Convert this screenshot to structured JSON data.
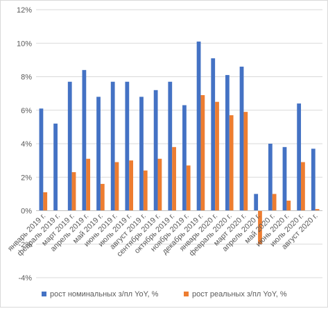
{
  "chart_data": {
    "type": "bar",
    "categories": [
      "январь 2019 г.",
      "февраль 2019 г.",
      "март 2019 г.",
      "апрель 2019 г.",
      "май 2019 г.",
      "июнь 2019 г.",
      "июль 2019 г.",
      "август 2019 г.",
      "сентябрь 2019 г.",
      "октябрь 2019 г.",
      "ноябрь 2019 г.",
      "декабрь 2019 г.",
      "январь 2020 г.",
      "февраль 2020 г.",
      "март 2020 г.",
      "апрель 2020 г.",
      "май 2020 г.",
      "июнь 2020 г.",
      "июль 2020 г.",
      "август 2020 г."
    ],
    "series": [
      {
        "name": "рост номинальных з/пл YoY, %",
        "color": "#4472c4",
        "values": [
          6.1,
          5.2,
          7.7,
          8.4,
          6.8,
          7.7,
          7.7,
          6.8,
          7.2,
          7.7,
          6.3,
          10.1,
          9.1,
          8.1,
          8.6,
          1.0,
          4.0,
          3.8,
          6.4,
          3.7
        ]
      },
      {
        "name": "рост реальных з/пл YoY, %",
        "color": "#ed7d31",
        "values": [
          1.1,
          null,
          2.3,
          3.1,
          1.6,
          2.9,
          3.0,
          2.4,
          3.1,
          3.8,
          2.7,
          6.9,
          6.5,
          5.7,
          5.9,
          -2.0,
          1.0,
          0.6,
          2.9,
          0.1
        ]
      }
    ],
    "ylim": [
      -4,
      12
    ],
    "yticks": [
      {
        "value": -4,
        "label": "-4%"
      },
      {
        "value": -2,
        "label": "-2%"
      },
      {
        "value": 0,
        "label": "0%"
      },
      {
        "value": 2,
        "label": "2%"
      },
      {
        "value": 4,
        "label": "4%"
      },
      {
        "value": 6,
        "label": "6%"
      },
      {
        "value": 8,
        "label": "8%"
      },
      {
        "value": 10,
        "label": "10%"
      },
      {
        "value": 12,
        "label": "12%"
      }
    ],
    "grid": true,
    "legend": "bottom"
  }
}
